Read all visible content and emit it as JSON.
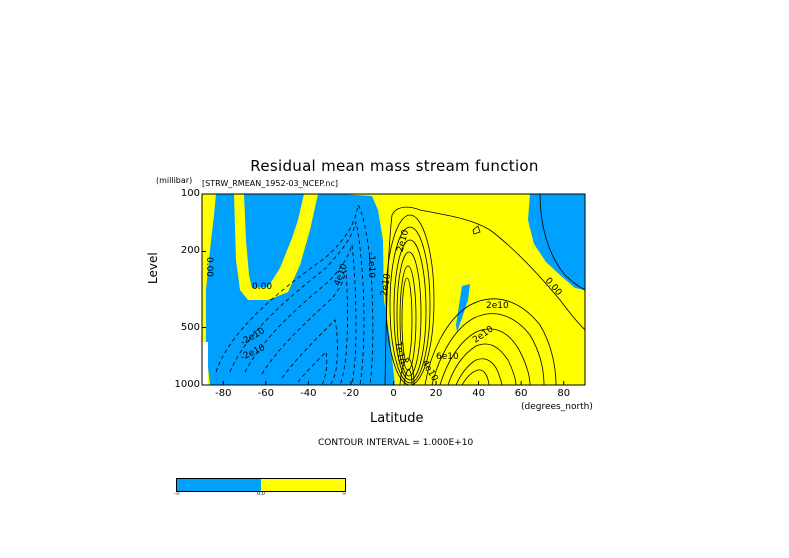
{
  "chart_data": {
    "type": "heatmap",
    "title": "Residual mean mass stream function",
    "source_label": "[STRW_RMEAN_1952-03_NCEP.nc]",
    "xlabel": "Latitude",
    "xunit": "(degrees_north)",
    "ylabel": "Level",
    "yunit": "(millibar)",
    "xlim": [
      -90,
      90
    ],
    "ylim": [
      1000,
      100
    ],
    "yscale": "log",
    "x_ticks": [
      "-80",
      "-60",
      "-40",
      "-20",
      "0",
      "20",
      "40",
      "60",
      "80"
    ],
    "y_ticks": [
      "100",
      "200",
      "500",
      "1000"
    ],
    "contour_interval_text": "CONTOUR INTERVAL = 1.000E+10",
    "contour_labels": [
      "0.00",
      "0.00",
      "-2e10",
      "4e10",
      "-2e10",
      "-1e10",
      "2e10",
      "2e10",
      "1e10",
      "2e10",
      "2e10",
      "0.00",
      "6e10",
      "4e10"
    ],
    "fill_colors": {
      "negative": "#00a0ff",
      "positive": "#ffff00"
    },
    "colorbar": {
      "labels": [
        "-∞",
        "0.0",
        "∞"
      ]
    }
  }
}
